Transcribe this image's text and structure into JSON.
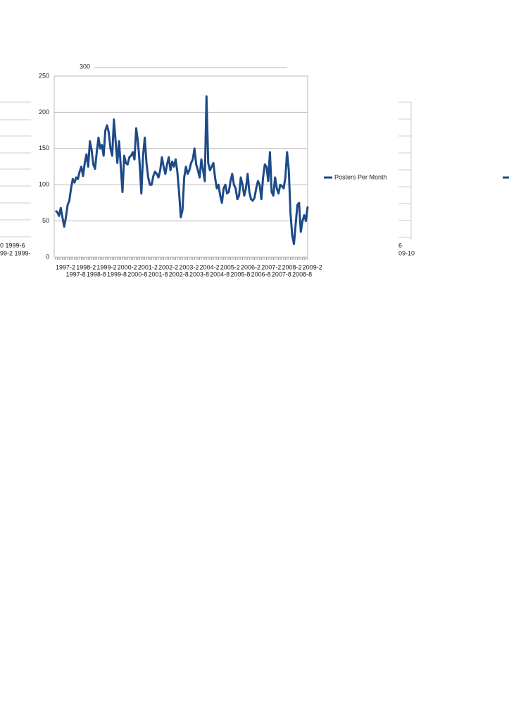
{
  "chart_data": {
    "type": "line",
    "categories": [
      "1997-2",
      null,
      null,
      null,
      null,
      null,
      "1997-8",
      null,
      null,
      null,
      null,
      null,
      "1998-2",
      null,
      null,
      null,
      null,
      null,
      "1998-8",
      null,
      null,
      null,
      null,
      null,
      "1999-2",
      null,
      null,
      null,
      null,
      null,
      "1999-8",
      null,
      null,
      null,
      null,
      null,
      "2000-2",
      null,
      null,
      null,
      null,
      null,
      "2000-8",
      null,
      null,
      null,
      null,
      null,
      "2001-2",
      null,
      null,
      null,
      null,
      null,
      "2001-8",
      null,
      null,
      null,
      null,
      null,
      "2002-2",
      null,
      null,
      null,
      null,
      null,
      "2002-8",
      null,
      null,
      null,
      null,
      null,
      "2003-2",
      null,
      null,
      null,
      null,
      null,
      "2003-8",
      null,
      null,
      null,
      null,
      null,
      "2004-2",
      null,
      null,
      null,
      null,
      null,
      "2004-8",
      null,
      null,
      null,
      null,
      null,
      "2005-2",
      null,
      null,
      null,
      null,
      null,
      "2005-8",
      null,
      null,
      null,
      null,
      null,
      "2006-2",
      null,
      null,
      null,
      null,
      null,
      "2006-8",
      null,
      null,
      null,
      null,
      null,
      "2007-2",
      null,
      null,
      null,
      null,
      null,
      "2007-8",
      null,
      null,
      null,
      null,
      null,
      "2008-2",
      null,
      null,
      null,
      null,
      null,
      "2008-8",
      null,
      null,
      null,
      null,
      null,
      "2009-2",
      null,
      null,
      null
    ],
    "series": [
      {
        "name": "Posters Per Month",
        "color": "#1d4a88",
        "values": [
          64,
          62,
          57,
          68,
          55,
          42,
          55,
          72,
          78,
          95,
          108,
          103,
          110,
          108,
          118,
          125,
          112,
          130,
          142,
          125,
          160,
          148,
          128,
          122,
          145,
          165,
          150,
          155,
          140,
          175,
          182,
          172,
          150,
          140,
          190,
          160,
          130,
          160,
          125,
          90,
          140,
          130,
          128,
          138,
          140,
          145,
          135,
          178,
          160,
          130,
          88,
          140,
          165,
          130,
          110,
          100,
          100,
          112,
          118,
          115,
          110,
          120,
          138,
          125,
          115,
          128,
          138,
          120,
          132,
          125,
          135,
          118,
          90,
          55,
          65,
          110,
          125,
          115,
          120,
          130,
          135,
          150,
          128,
          120,
          110,
          135,
          120,
          105,
          222,
          130,
          120,
          125,
          130,
          110,
          95,
          100,
          85,
          75,
          95,
          100,
          88,
          90,
          105,
          115,
          100,
          95,
          80,
          85,
          110,
          100,
          85,
          95,
          115,
          90,
          80,
          78,
          82,
          95,
          105,
          100,
          80,
          110,
          128,
          125,
          105,
          145,
          90,
          85,
          110,
          95,
          88,
          100,
          98,
          95,
          110,
          145,
          120,
          60,
          30,
          18,
          45,
          72,
          75,
          35,
          50,
          58,
          50,
          70
        ]
      }
    ],
    "ylim": [
      0,
      250
    ],
    "yticks": [
      0,
      50,
      100,
      150,
      200,
      250
    ],
    "grid": true,
    "legend": "right"
  },
  "fragments": {
    "top_tick": "300",
    "left_labels": [
      "0 1999-6",
      "99-2 1999-"
    ],
    "right_labels": [
      "6",
      "09-10"
    ]
  }
}
